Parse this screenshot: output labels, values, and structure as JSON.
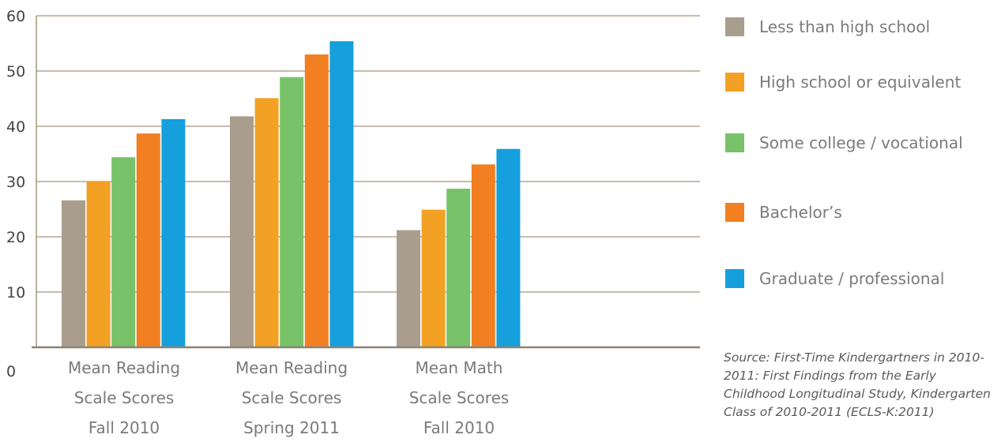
{
  "chart_data": {
    "type": "bar",
    "categories": [
      [
        "Mean Reading",
        "Scale Scores",
        "Fall 2010"
      ],
      [
        "Mean Reading",
        "Scale Scores",
        "Spring 2011"
      ],
      [
        "Mean Math",
        "Scale Scores",
        "Fall 2010"
      ]
    ],
    "series": [
      {
        "name": "Less than high school",
        "color": "#a99d8d",
        "values": [
          26.6,
          41.8,
          21.2
        ]
      },
      {
        "name": "High school or equivalent",
        "color": "#f3a124",
        "values": [
          30.1,
          45.1,
          24.9
        ]
      },
      {
        "name": "Some college / vocational",
        "color": "#78c26a",
        "values": [
          34.4,
          48.9,
          28.7
        ]
      },
      {
        "name": "Bachelor’s",
        "color": "#f27f22",
        "values": [
          38.7,
          53.0,
          33.1
        ]
      },
      {
        "name": "Graduate / professional",
        "color": "#159fdc",
        "values": [
          41.3,
          55.4,
          35.9
        ]
      }
    ],
    "yticks": [
      "0",
      "10",
      "20",
      "30",
      "40",
      "50",
      "60"
    ],
    "ylim": [
      0,
      60
    ],
    "grid": true,
    "legend_position": "right",
    "title": "",
    "xlabel": "",
    "ylabel": ""
  },
  "source_note": "Source: First-Time Kindergartners in 2010-2011: First Findings from the Early Childhood Longitudinal Study, Kindergarten Class of 2010-2011 (ECLS-K:2011)"
}
